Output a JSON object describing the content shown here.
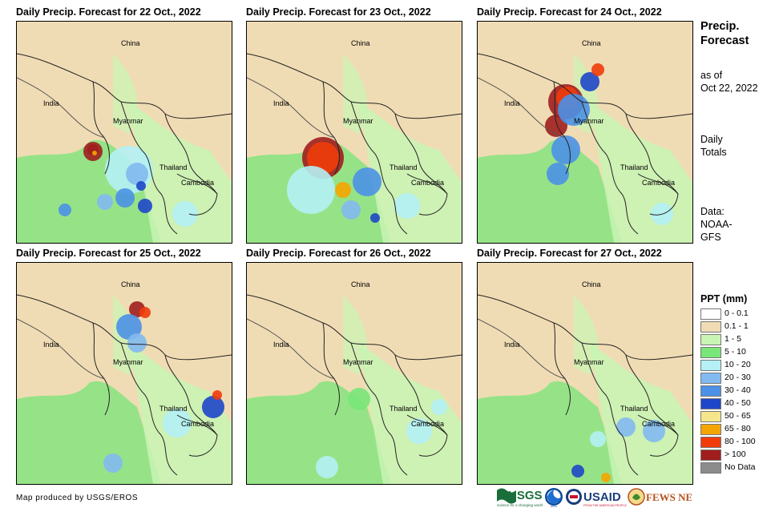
{
  "panels": [
    {
      "title": "Daily Precip. Forecast for 22 Oct., 2022"
    },
    {
      "title": "Daily Precip. Forecast for 23 Oct., 2022"
    },
    {
      "title": "Daily Precip. Forecast for 24 Oct., 2022"
    },
    {
      "title": "Daily Precip. Forecast for 25 Oct., 2022"
    },
    {
      "title": "Daily Precip. Forecast for 26 Oct., 2022"
    },
    {
      "title": "Daily Precip. Forecast for 27 Oct., 2022"
    }
  ],
  "map_labels": {
    "china": "China",
    "india": "India",
    "myanmar": "Myanmar",
    "thailand": "Thailand",
    "cambodia": "Cambodia"
  },
  "sidebar": {
    "title_line1": "Precip.",
    "title_line2": "Forecast",
    "asof_line1": "as of",
    "asof_line2": "Oct 22, 2022",
    "totals_line1": "Daily",
    "totals_line2": "Totals",
    "data_line1": "Data:",
    "data_line2": "NOAA-",
    "data_line3": "GFS"
  },
  "legend": {
    "title": "PPT (mm)",
    "items": [
      {
        "label": "0 - 0.1",
        "color": "#ffffff"
      },
      {
        "label": "0.1 - 1",
        "color": "#f0dcb4"
      },
      {
        "label": "1 - 5",
        "color": "#c8f5b4"
      },
      {
        "label": "5 - 10",
        "color": "#78e678"
      },
      {
        "label": "10 - 20",
        "color": "#b4f0f5"
      },
      {
        "label": "20 - 30",
        "color": "#82b9f0"
      },
      {
        "label": "30 - 40",
        "color": "#4b91e6"
      },
      {
        "label": "40 - 50",
        "color": "#1e46c8"
      },
      {
        "label": "50 - 65",
        "color": "#f5e68c"
      },
      {
        "label": "65 - 80",
        "color": "#f5a500"
      },
      {
        "label": "80 - 100",
        "color": "#f03c0a"
      },
      {
        "label": "> 100",
        "color": "#a01e1e"
      },
      {
        "label": "No Data",
        "color": "#8c8c8c"
      }
    ]
  },
  "credit": "Map produced by USGS/EROS",
  "logos": {
    "usgs": "USGS",
    "usgs_tagline": "science for a changing world",
    "noaa": "NOAA",
    "usaid": "USAID",
    "usaid_tagline": "FROM THE AMERICAN PEOPLE",
    "fewsnet": "FEWS NET"
  }
}
